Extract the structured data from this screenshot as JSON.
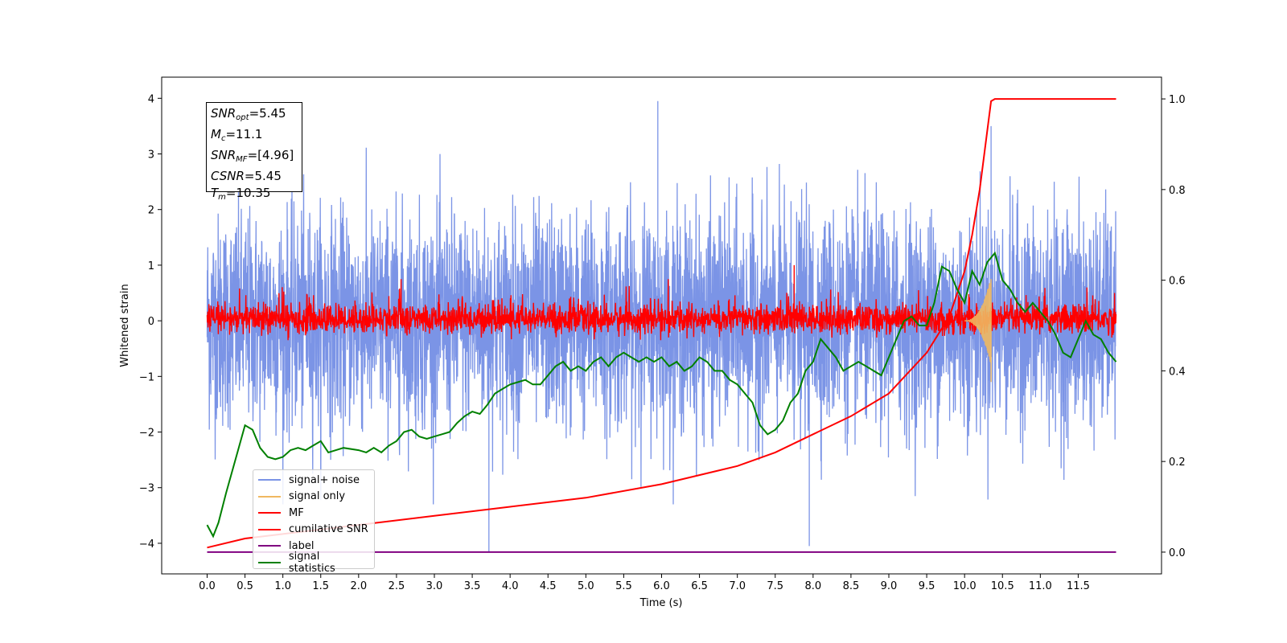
{
  "chart_data": {
    "type": "line",
    "xlabel": "Time (s)",
    "ylabel": "Whitened strain",
    "xlim": [
      -0.6,
      12.6
    ],
    "ylim": [
      -4.55,
      4.38
    ],
    "y2lim": [
      -0.048,
      1.048
    ],
    "x_ticks": [
      "0.0",
      "0.5",
      "1.0",
      "1.5",
      "2.0",
      "2.5",
      "3.0",
      "3.5",
      "4.0",
      "4.5",
      "5.0",
      "5.5",
      "6.0",
      "6.5",
      "7.0",
      "7.5",
      "8.0",
      "8.5",
      "9.0",
      "9.5",
      "10.0",
      "10.5",
      "11.0",
      "11.5"
    ],
    "y_ticks": [
      "4",
      "3",
      "2",
      "1",
      "0",
      "−1",
      "−2",
      "−3",
      "−4"
    ],
    "y2_ticks": [
      "1.0",
      "0.8",
      "0.6",
      "0.4",
      "0.2",
      "0.0"
    ],
    "annotation": {
      "snr_opt": "=5.45",
      "mc": "=11.1",
      "snr_mf": "=[4.96]",
      "csnr": "=5.45",
      "tm": "=10.35"
    },
    "series": [
      {
        "name": "signal+ noise",
        "color": "#7b94e6",
        "axis": "left",
        "x_range": [
          0,
          12
        ],
        "band": [
          -1.2,
          1.3
        ],
        "spikes": [
          [
            3.72,
            -4.15
          ],
          [
            5.95,
            3.95
          ],
          [
            7.95,
            -4.05
          ],
          [
            10.35,
            3.5
          ]
        ]
      },
      {
        "name": "signal only",
        "color": "#f0b860",
        "axis": "left",
        "chirp_end": 10.35,
        "amplitude_max": 0.8
      },
      {
        "name": "MF",
        "color": "#ff0000",
        "axis": "left",
        "x_range": [
          0,
          12
        ],
        "band": [
          -0.3,
          0.45
        ]
      },
      {
        "name": "cumilative SNR",
        "color": "#ff0000",
        "axis": "right",
        "x": [
          0,
          0.5,
          1.0,
          2.0,
          3.0,
          4.0,
          5.0,
          6.0,
          7.0,
          7.5,
          8.0,
          8.5,
          9.0,
          9.5,
          9.8,
          10.0,
          10.1,
          10.2,
          10.3,
          10.35,
          10.4,
          11.0,
          12.0
        ],
        "y": [
          0.01,
          0.03,
          0.04,
          0.06,
          0.08,
          0.1,
          0.12,
          0.15,
          0.19,
          0.22,
          0.26,
          0.3,
          0.35,
          0.44,
          0.52,
          0.62,
          0.7,
          0.8,
          0.93,
          0.995,
          1.0,
          1.0,
          1.0
        ]
      },
      {
        "name": "label",
        "color": "#800080",
        "axis": "right",
        "x": [
          0,
          12
        ],
        "y": [
          0.0,
          0.0
        ]
      },
      {
        "name": "signal statistics",
        "color": "#008000",
        "axis": "right",
        "x": [
          0,
          0.08,
          0.15,
          0.25,
          0.4,
          0.5,
          0.6,
          0.7,
          0.8,
          0.9,
          1.0,
          1.1,
          1.2,
          1.3,
          1.4,
          1.5,
          1.6,
          1.7,
          1.8,
          2.0,
          2.1,
          2.2,
          2.3,
          2.4,
          2.5,
          2.6,
          2.7,
          2.8,
          2.9,
          3.0,
          3.1,
          3.2,
          3.3,
          3.4,
          3.5,
          3.6,
          3.7,
          3.8,
          3.9,
          4.0,
          4.1,
          4.2,
          4.3,
          4.4,
          4.5,
          4.6,
          4.7,
          4.8,
          4.9,
          5.0,
          5.1,
          5.2,
          5.3,
          5.4,
          5.5,
          5.6,
          5.7,
          5.8,
          5.9,
          6.0,
          6.1,
          6.2,
          6.3,
          6.4,
          6.5,
          6.6,
          6.7,
          6.8,
          6.9,
          7.0,
          7.1,
          7.2,
          7.3,
          7.4,
          7.5,
          7.6,
          7.7,
          7.8,
          7.9,
          8.0,
          8.1,
          8.2,
          8.3,
          8.4,
          8.5,
          8.6,
          8.7,
          8.8,
          8.9,
          9.0,
          9.1,
          9.2,
          9.3,
          9.4,
          9.5,
          9.6,
          9.7,
          9.8,
          9.9,
          10.0,
          10.1,
          10.2,
          10.3,
          10.4,
          10.5,
          10.6,
          10.7,
          10.8,
          10.9,
          11.0,
          11.1,
          11.2,
          11.3,
          11.4,
          11.5,
          11.6,
          11.7,
          11.8,
          11.9,
          12.0
        ],
        "y": [
          0.06,
          0.035,
          0.065,
          0.13,
          0.22,
          0.28,
          0.27,
          0.23,
          0.21,
          0.205,
          0.21,
          0.225,
          0.23,
          0.225,
          0.235,
          0.245,
          0.22,
          0.225,
          0.23,
          0.225,
          0.22,
          0.23,
          0.22,
          0.235,
          0.245,
          0.265,
          0.27,
          0.255,
          0.25,
          0.255,
          0.26,
          0.265,
          0.285,
          0.3,
          0.31,
          0.305,
          0.325,
          0.35,
          0.36,
          0.37,
          0.375,
          0.38,
          0.37,
          0.37,
          0.39,
          0.41,
          0.42,
          0.4,
          0.41,
          0.4,
          0.42,
          0.43,
          0.41,
          0.43,
          0.44,
          0.43,
          0.42,
          0.43,
          0.42,
          0.43,
          0.41,
          0.42,
          0.4,
          0.41,
          0.43,
          0.42,
          0.4,
          0.4,
          0.38,
          0.37,
          0.35,
          0.33,
          0.28,
          0.26,
          0.27,
          0.29,
          0.33,
          0.35,
          0.4,
          0.42,
          0.47,
          0.45,
          0.43,
          0.4,
          0.41,
          0.42,
          0.41,
          0.4,
          0.39,
          0.43,
          0.47,
          0.51,
          0.52,
          0.5,
          0.5,
          0.55,
          0.63,
          0.62,
          0.58,
          0.55,
          0.62,
          0.59,
          0.64,
          0.66,
          0.6,
          0.58,
          0.55,
          0.53,
          0.55,
          0.53,
          0.51,
          0.48,
          0.44,
          0.43,
          0.47,
          0.51,
          0.48,
          0.47,
          0.44,
          0.42
        ]
      }
    ]
  }
}
